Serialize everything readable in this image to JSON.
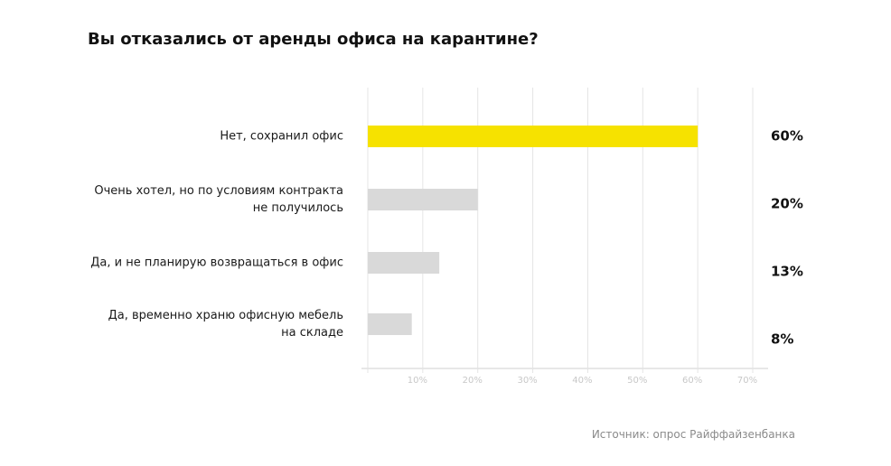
{
  "chart_data": {
    "type": "bar",
    "orientation": "horizontal",
    "title": "Вы отказались от аренды офиса на карантине?",
    "categories": [
      "Нет, сохранил офис",
      "Очень хотел, но по условиям контракта\nне получилось",
      "Да, и не планирую возвращаться в офис",
      "Да, временно храню офисную мебель\nна складе"
    ],
    "values": [
      60,
      20,
      13,
      8
    ],
    "value_labels": [
      "60%",
      "20%",
      "13%",
      "8%"
    ],
    "colors": [
      "#f6e200",
      "#d9d9d9",
      "#d9d9d9",
      "#d9d9d9"
    ],
    "xlim": [
      0,
      70
    ],
    "xticks": [
      {
        "value": 10,
        "label": "10%"
      },
      {
        "value": 20,
        "label": "20%"
      },
      {
        "value": 30,
        "label": "30%"
      },
      {
        "value": 40,
        "label": "40%"
      },
      {
        "value": 50,
        "label": "50%"
      },
      {
        "value": 60,
        "label": "60%"
      },
      {
        "value": 70,
        "label": "70%"
      }
    ],
    "grid": true,
    "source": "Источник: опрос Райффайзенбанка"
  }
}
